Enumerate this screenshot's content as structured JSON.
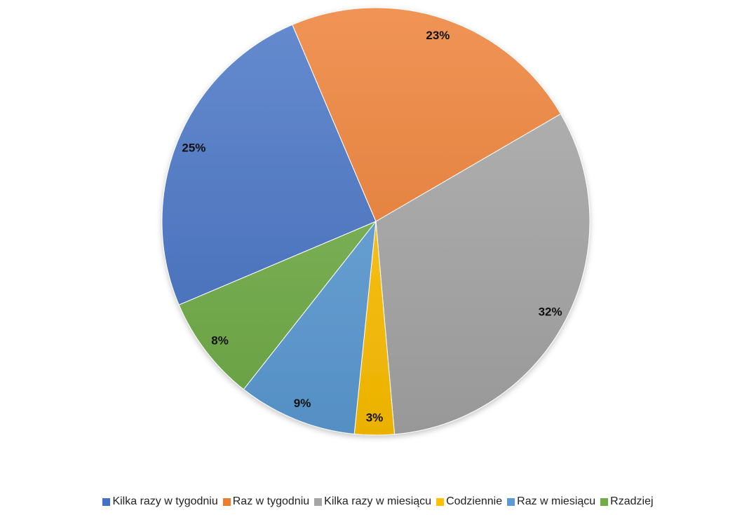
{
  "chart_data": {
    "type": "pie",
    "categories": [
      "Kilka razy w tygodniu",
      "Raz w tygodniu",
      "Kilka razy w miesiącu",
      "Codziennie",
      "Raz w miesiącu",
      "Rzadziej"
    ],
    "values": [
      25,
      23,
      32,
      3,
      9,
      8
    ],
    "data_labels": [
      "25%",
      "23%",
      "32%",
      "3%",
      "9%",
      "8%"
    ],
    "colors": [
      "#4472C4",
      "#ED7D31",
      "#A5A5A5",
      "#FFC000",
      "#5B9BD5",
      "#70AD47"
    ],
    "title": "",
    "legend_position": "bottom",
    "start_angle_deg": 157,
    "direction": "clockwise"
  }
}
